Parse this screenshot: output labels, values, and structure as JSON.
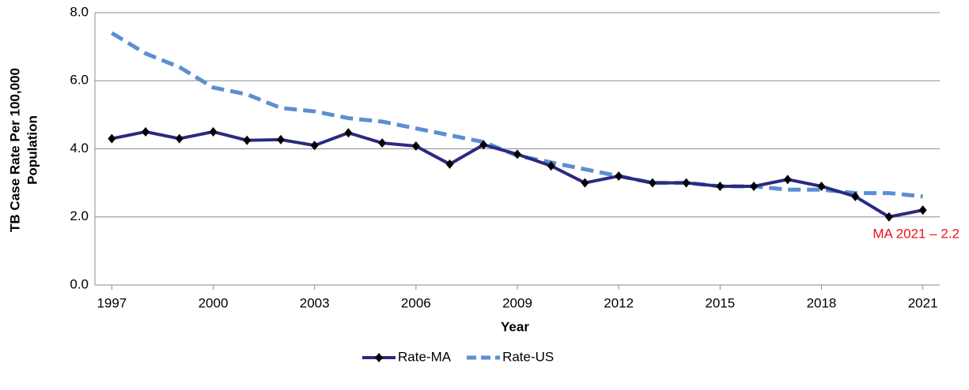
{
  "chart_data": {
    "type": "line",
    "xlabel": "Year",
    "ylabel": [
      "TB Case Rate Per 100,000",
      "Population"
    ],
    "x": [
      1997,
      1998,
      1999,
      2000,
      2001,
      2002,
      2003,
      2004,
      2005,
      2006,
      2007,
      2008,
      2009,
      2010,
      2011,
      2012,
      2013,
      2014,
      2015,
      2016,
      2017,
      2018,
      2019,
      2020,
      2021
    ],
    "xlim": [
      1996.5,
      2021.5
    ],
    "xticks": [
      1997,
      2000,
      2003,
      2006,
      2009,
      2012,
      2015,
      2018,
      2021
    ],
    "ylim": [
      0,
      8
    ],
    "yticks": [
      {
        "value": 0,
        "label": "0.0"
      },
      {
        "value": 2,
        "label": "2.0"
      },
      {
        "value": 4,
        "label": "4.0"
      },
      {
        "value": 6,
        "label": "6.0"
      },
      {
        "value": 8,
        "label": "8.0"
      }
    ],
    "grid": true,
    "legend": "bottom",
    "series": [
      {
        "name": "Rate-MA",
        "color": "#2b2a7e",
        "style": "solid",
        "marker": "diamond",
        "values": [
          4.3,
          4.5,
          4.3,
          4.5,
          4.25,
          4.27,
          4.1,
          4.47,
          4.17,
          4.08,
          3.55,
          4.12,
          3.84,
          3.5,
          3.0,
          3.2,
          3.0,
          3.0,
          2.9,
          2.9,
          3.1,
          2.9,
          2.6,
          2.0,
          2.2
        ]
      },
      {
        "name": "Rate-US",
        "color": "#5b8fd0",
        "style": "dashed",
        "values": [
          7.4,
          6.8,
          6.4,
          5.8,
          5.6,
          5.2,
          5.1,
          4.9,
          4.8,
          4.6,
          4.4,
          4.2,
          3.8,
          3.6,
          3.4,
          3.2,
          3.0,
          3.0,
          2.9,
          2.9,
          2.8,
          2.8,
          2.7,
          2.7,
          2.6
        ]
      }
    ],
    "annotations": [
      {
        "text": "MA 2021 – 2.2",
        "color": "#e8141b"
      }
    ]
  }
}
